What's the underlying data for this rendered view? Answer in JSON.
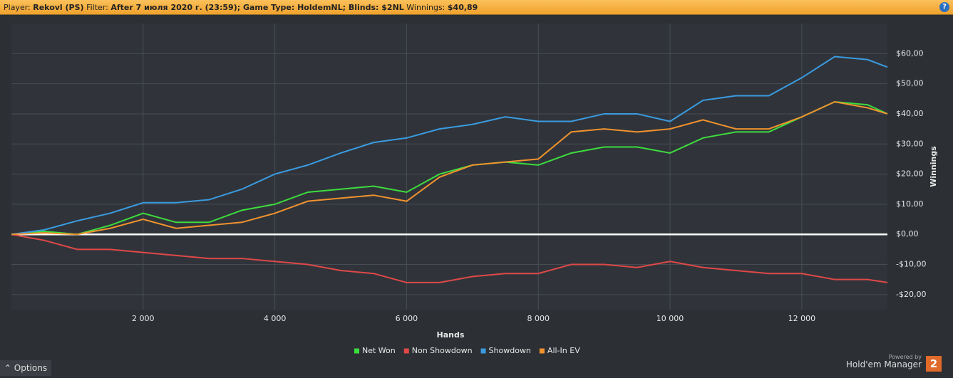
{
  "header": {
    "player_label": "Player:",
    "player": "Rekovl (PS)",
    "filter_label": "Filter:",
    "filter": "After 7 июля 2020 г. (23:59); Game Type: HoldemNL; Blinds: $2NL",
    "winnings_label": "Winnings:",
    "winnings": "$40,89",
    "help": "?"
  },
  "footer": {
    "options": "Options",
    "powered_by": "Powered by",
    "product": "Hold'em Manager",
    "logo": "2"
  },
  "chart_data": {
    "type": "line",
    "x_label": "Hands",
    "y_label": "Winnings",
    "x": [
      0,
      500,
      1000,
      1500,
      2000,
      2500,
      3000,
      3500,
      4000,
      4500,
      5000,
      5500,
      6000,
      6500,
      7000,
      7500,
      8000,
      8500,
      9000,
      9500,
      10000,
      10500,
      11000,
      11500,
      12000,
      12500,
      13000,
      13300
    ],
    "series": [
      {
        "name": "Net Won",
        "color": "#3ddc3d",
        "values": [
          0,
          1,
          0,
          3,
          7,
          4,
          4,
          8,
          10,
          14,
          15,
          16,
          14,
          20,
          23,
          24,
          23,
          27,
          29,
          29,
          27,
          32,
          34,
          34,
          39,
          44,
          43,
          40
        ]
      },
      {
        "name": "Non Showdown",
        "color": "#e04848",
        "values": [
          0,
          -2,
          -5,
          -5,
          -6,
          -7,
          -8,
          -8,
          -9,
          -10,
          -12,
          -13,
          -16,
          -16,
          -14,
          -13,
          -13,
          -10,
          -10,
          -11,
          -9,
          -11,
          -12,
          -13,
          -13,
          -15,
          -15,
          -16
        ]
      },
      {
        "name": "Showdown",
        "color": "#3a9be0",
        "values": [
          0,
          1.5,
          4.5,
          7,
          10.5,
          10.5,
          11.5,
          15,
          20,
          23,
          27,
          30.5,
          32,
          35,
          36.5,
          39,
          37.5,
          37.5,
          40,
          40,
          37.5,
          44.5,
          46,
          46,
          52,
          59,
          58,
          55.5
        ]
      },
      {
        "name": "All-In EV",
        "color": "#f0922e",
        "values": [
          0,
          0.5,
          0,
          2,
          5,
          2,
          3,
          4,
          7,
          11,
          12,
          13,
          11,
          19,
          23,
          24,
          25,
          34,
          35,
          34,
          35,
          38,
          35,
          35,
          39,
          44,
          42,
          40
        ]
      }
    ],
    "xlim": [
      0,
      13300
    ],
    "ylim": [
      -25,
      70
    ],
    "xticks": [
      {
        "value": 2000,
        "label": "2 000"
      },
      {
        "value": 4000,
        "label": "4 000"
      },
      {
        "value": 6000,
        "label": "6 000"
      },
      {
        "value": 8000,
        "label": "8 000"
      },
      {
        "value": 10000,
        "label": "10 000"
      },
      {
        "value": 12000,
        "label": "12 000"
      }
    ],
    "yticks": [
      {
        "value": -20,
        "label": "-$20,00"
      },
      {
        "value": -10,
        "label": "-$10,00"
      },
      {
        "value": 0,
        "label": "$0,00"
      },
      {
        "value": 10,
        "label": "$10,00"
      },
      {
        "value": 20,
        "label": "$20,00"
      },
      {
        "value": 30,
        "label": "$30,00"
      },
      {
        "value": 40,
        "label": "$40,00"
      },
      {
        "value": 50,
        "label": "$50,00"
      },
      {
        "value": 60,
        "label": "$60,00"
      }
    ],
    "grid": true
  }
}
